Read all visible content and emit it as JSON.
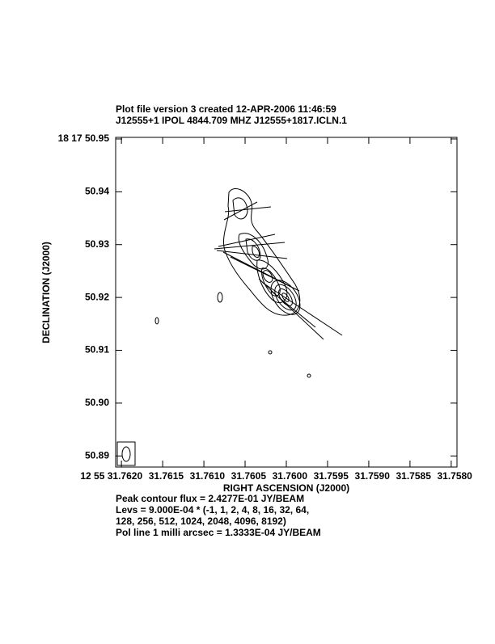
{
  "chart_data": {
    "type": "contour",
    "title": "Plot file version 3  created 12-APR-2006 11:46:59",
    "subtitle": "J12555+1   IPOL  4844.709 MHZ  J12555+1817.ICLN.1",
    "xlabel": "RIGHT ASCENSION (J2000)",
    "ylabel": "DECLINATION (J2000)",
    "xlim": [
      31.76207,
      31.75793
    ],
    "ylim": [
      50.8879,
      50.9503
    ],
    "xticks": [
      {
        "value": 31.762,
        "label": "12 55 31.7620"
      },
      31.7615,
      {
        "value": 31.761,
        "label": "31.7610"
      },
      31.7605,
      {
        "value": 31.76,
        "label": "31.7600"
      },
      31.7595,
      {
        "value": 31.759,
        "label": "31.7590"
      },
      31.7585,
      {
        "value": 31.758,
        "label": "31.7580"
      }
    ],
    "yticks": [
      {
        "value": 50.95,
        "label": "18 17 50.95"
      },
      50.94,
      50.93,
      50.92,
      50.91,
      {
        "value": 50.9,
        "label": "50.90"
      },
      50.89
    ],
    "notes": [
      "Peak contour flux =  2.4277E-01 JY/BEAM",
      "Levs = 9.000E-04 * (-1, 1, 2, 4, 8, 16, 32, 64,",
      "128, 256, 512, 1024, 2048, 4096, 8192)",
      "Pol line 1 milli arcsec =  1.3333E-04 JY/BEAM"
    ]
  }
}
